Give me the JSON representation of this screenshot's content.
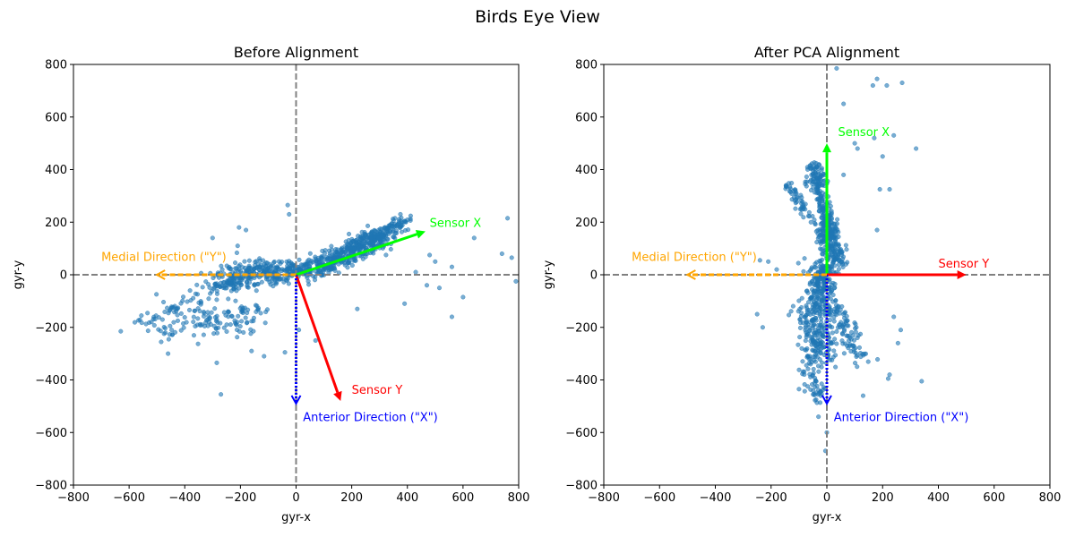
{
  "figure": {
    "suptitle": "Birds Eye View"
  },
  "chart_data": [
    {
      "type": "scatter",
      "title": "Before Alignment",
      "xlabel": "gyr-x",
      "ylabel": "gyr-y",
      "xlim": [
        -800,
        800
      ],
      "ylim": [
        -800,
        800
      ],
      "xticks": [
        "-800",
        "-600",
        "-400",
        "-200",
        "0",
        "200",
        "400",
        "600",
        "800"
      ],
      "yticks": [
        "-800",
        "-600",
        "-400",
        "-200",
        "0",
        "200",
        "400",
        "600",
        "800"
      ],
      "grid": false,
      "reference_lines": {
        "x": 0,
        "y": 0,
        "style": "dashed",
        "color": "#808080"
      },
      "point_color": "#1f77b4",
      "point_alpha": 0.6,
      "cloud": [
        {
          "from": [
            -300,
            -40
          ],
          "to": [
            -100,
            20
          ],
          "spread": [
            70,
            50
          ],
          "n": 220
        },
        {
          "from": [
            -100,
            0
          ],
          "to": [
            120,
            40
          ],
          "spread": [
            60,
            40
          ],
          "n": 240
        },
        {
          "from": [
            100,
            40
          ],
          "to": [
            300,
            140
          ],
          "spread": [
            50,
            40
          ],
          "n": 260
        },
        {
          "from": [
            200,
            100
          ],
          "to": [
            400,
            210
          ],
          "spread": [
            40,
            30
          ],
          "n": 160
        },
        {
          "from": [
            -450,
            -200
          ],
          "to": [
            -150,
            -150
          ],
          "spread": [
            90,
            60
          ],
          "n": 120
        },
        {
          "from": [
            -550,
            -180
          ],
          "to": [
            -350,
            -100
          ],
          "spread": [
            60,
            60
          ],
          "n": 50
        }
      ],
      "outliers": [
        [
          -630,
          -215
        ],
        [
          -460,
          -300
        ],
        [
          -285,
          -335
        ],
        [
          -270,
          -455
        ],
        [
          -205,
          180
        ],
        [
          -180,
          170
        ],
        [
          -30,
          265
        ],
        [
          -25,
          230
        ],
        [
          -160,
          -290
        ],
        [
          -115,
          -310
        ],
        [
          -40,
          -295
        ],
        [
          70,
          -250
        ],
        [
          10,
          -210
        ],
        [
          480,
          75
        ],
        [
          500,
          50
        ],
        [
          560,
          30
        ],
        [
          640,
          140
        ],
        [
          760,
          215
        ],
        [
          775,
          65
        ],
        [
          790,
          -25
        ],
        [
          740,
          80
        ],
        [
          600,
          -85
        ],
        [
          560,
          -160
        ],
        [
          470,
          -40
        ],
        [
          515,
          -50
        ],
        [
          390,
          -110
        ],
        [
          430,
          10
        ],
        [
          220,
          -130
        ],
        [
          190,
          155
        ],
        [
          -300,
          140
        ],
        [
          -210,
          110
        ]
      ],
      "arrows": [
        {
          "label": "Sensor X",
          "to": [
            465,
            165
          ],
          "color": "#00ff00",
          "style": "solid",
          "label_pos": [
            480,
            200
          ],
          "anchor": "start"
        },
        {
          "label": "Sensor Y",
          "to": [
            160,
            -480
          ],
          "color": "#ff0000",
          "style": "solid",
          "label_pos": [
            200,
            -435
          ],
          "anchor": "start"
        },
        {
          "label": "Anterior Direction (\"X\")",
          "to": [
            0,
            -490
          ],
          "color": "#0000ff",
          "style": "dotted",
          "label_pos": [
            25,
            -540
          ],
          "anchor": "start"
        },
        {
          "label": "Medial Direction (\"Y\")",
          "to": [
            -500,
            0
          ],
          "color": "#ffa500",
          "style": "dashed",
          "label_pos": [
            -700,
            70
          ],
          "anchor": "start"
        }
      ]
    },
    {
      "type": "scatter",
      "title": "After PCA Alignment",
      "xlabel": "gyr-x",
      "ylabel": "gyr-y",
      "xlim": [
        -800,
        800
      ],
      "ylim": [
        -800,
        800
      ],
      "xticks": [
        "-800",
        "-600",
        "-400",
        "-200",
        "0",
        "200",
        "400",
        "600",
        "800"
      ],
      "yticks": [
        "-800",
        "-600",
        "-400",
        "-200",
        "0",
        "200",
        "400",
        "600",
        "800"
      ],
      "grid": false,
      "reference_lines": {
        "x": 0,
        "y": 0,
        "style": "dashed",
        "color": "#808080"
      },
      "point_color": "#1f77b4",
      "point_alpha": 0.6,
      "cloud": [
        {
          "from": [
            -50,
            420
          ],
          "to": [
            0,
            200
          ],
          "spread": [
            30,
            20
          ],
          "n": 160
        },
        {
          "from": [
            0,
            200
          ],
          "to": [
            30,
            40
          ],
          "spread": [
            40,
            30
          ],
          "n": 220
        },
        {
          "from": [
            -20,
            40
          ],
          "to": [
            -10,
            -120
          ],
          "spread": [
            50,
            40
          ],
          "n": 200
        },
        {
          "from": [
            -60,
            -120
          ],
          "to": [
            -20,
            -320
          ],
          "spread": [
            60,
            40
          ],
          "n": 200
        },
        {
          "from": [
            -80,
            -300
          ],
          "to": [
            -20,
            -500
          ],
          "spread": [
            30,
            30
          ],
          "n": 60
        },
        {
          "from": [
            20,
            -100
          ],
          "to": [
            120,
            -320
          ],
          "spread": [
            40,
            40
          ],
          "n": 90
        },
        {
          "from": [
            -140,
            340
          ],
          "to": [
            -50,
            200
          ],
          "spread": [
            20,
            25
          ],
          "n": 50
        }
      ],
      "outliers": [
        [
          35,
          785
        ],
        [
          180,
          745
        ],
        [
          165,
          720
        ],
        [
          215,
          720
        ],
        [
          270,
          730
        ],
        [
          60,
          650
        ],
        [
          100,
          500
        ],
        [
          110,
          480
        ],
        [
          200,
          450
        ],
        [
          170,
          520
        ],
        [
          240,
          530
        ],
        [
          320,
          480
        ],
        [
          190,
          325
        ],
        [
          225,
          325
        ],
        [
          180,
          170
        ],
        [
          0,
          -600
        ],
        [
          -5,
          -670
        ],
        [
          -30,
          -540
        ],
        [
          225,
          -380
        ],
        [
          220,
          -395
        ],
        [
          340,
          -405
        ],
        [
          255,
          -260
        ],
        [
          265,
          -210
        ],
        [
          240,
          -160
        ],
        [
          -250,
          -150
        ],
        [
          -230,
          -200
        ],
        [
          -240,
          55
        ],
        [
          -210,
          50
        ],
        [
          -180,
          20
        ],
        [
          -100,
          -435
        ],
        [
          130,
          -460
        ],
        [
          60,
          380
        ]
      ],
      "arrows": [
        {
          "label": "Sensor X",
          "to": [
            0,
            500
          ],
          "color": "#00ff00",
          "style": "solid",
          "label_pos": [
            40,
            545
          ],
          "anchor": "start"
        },
        {
          "label": "Sensor Y",
          "to": [
            500,
            0
          ],
          "color": "#ff0000",
          "style": "solid",
          "label_pos": [
            400,
            45
          ],
          "anchor": "start"
        },
        {
          "label": "Anterior Direction (\"X\")",
          "to": [
            0,
            -490
          ],
          "color": "#0000ff",
          "style": "dotted",
          "label_pos": [
            25,
            -540
          ],
          "anchor": "start"
        },
        {
          "label": "Medial Direction (\"Y\")",
          "to": [
            -500,
            0
          ],
          "color": "#ffa500",
          "style": "dashed",
          "label_pos": [
            -700,
            70
          ],
          "anchor": "start"
        }
      ]
    }
  ]
}
